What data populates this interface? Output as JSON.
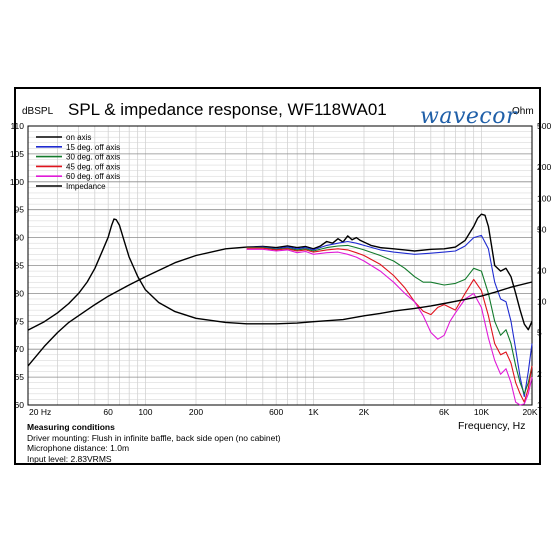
{
  "chart_data": {
    "type": "line",
    "title": "SPL & impedance response, WF118WA01",
    "logo": "wavecor",
    "y_left_label": "dBSPL",
    "y_right_label": "Ohm",
    "xlabel": "Frequency, Hz",
    "x_scale": "log",
    "xlim": [
      20,
      20000
    ],
    "ylim": [
      60,
      110
    ],
    "y_right_scale": "log",
    "y_right_lim": [
      1,
      500
    ],
    "x_ticks": [
      {
        "v": 20,
        "t": "20 Hz"
      },
      {
        "v": 60,
        "t": "60"
      },
      {
        "v": 100,
        "t": "100"
      },
      {
        "v": 200,
        "t": "200"
      },
      {
        "v": 600,
        "t": "600"
      },
      {
        "v": 1000,
        "t": "1K"
      },
      {
        "v": 2000,
        "t": "2K"
      },
      {
        "v": 6000,
        "t": "6K"
      },
      {
        "v": 10000,
        "t": "10K"
      },
      {
        "v": 20000,
        "t": "20K"
      }
    ],
    "y_ticks": [
      60,
      65,
      70,
      75,
      80,
      85,
      90,
      95,
      100,
      105,
      110
    ],
    "y_right_ticks": [
      1,
      2,
      5,
      10,
      20,
      50,
      100,
      200,
      500
    ],
    "grid": true,
    "legend_position": "top-left",
    "series": [
      {
        "name": "on axis",
        "color": "#000000",
        "axis": "left",
        "points": [
          [
            400,
            88.3
          ],
          [
            500,
            88.4
          ],
          [
            600,
            88.2
          ],
          [
            700,
            88.5
          ],
          [
            800,
            88.2
          ],
          [
            900,
            88.4
          ],
          [
            1000,
            88.0
          ],
          [
            1100,
            88.5
          ],
          [
            1200,
            89.3
          ],
          [
            1300,
            89.0
          ],
          [
            1400,
            89.8
          ],
          [
            1500,
            89.2
          ],
          [
            1600,
            90.3
          ],
          [
            1700,
            89.6
          ],
          [
            1800,
            90.0
          ],
          [
            1900,
            89.5
          ],
          [
            2000,
            89.2
          ],
          [
            2200,
            88.6
          ],
          [
            2500,
            88.2
          ],
          [
            3000,
            88.0
          ],
          [
            3500,
            87.8
          ],
          [
            4000,
            87.6
          ],
          [
            5000,
            87.9
          ],
          [
            6000,
            88.0
          ],
          [
            7000,
            88.3
          ],
          [
            8000,
            89.5
          ],
          [
            9000,
            92.0
          ],
          [
            9500,
            93.5
          ],
          [
            10000,
            94.2
          ],
          [
            10500,
            94.0
          ],
          [
            11000,
            92.0
          ],
          [
            11500,
            88.5
          ],
          [
            12000,
            85.0
          ],
          [
            13000,
            84.0
          ],
          [
            14000,
            84.5
          ],
          [
            15000,
            83.0
          ],
          [
            16000,
            80.0
          ],
          [
            17000,
            77.0
          ],
          [
            18000,
            74.5
          ],
          [
            19000,
            73.5
          ],
          [
            20000,
            75.0
          ]
        ]
      },
      {
        "name": "15 deg. off axis",
        "color": "#1f2bd0",
        "axis": "left",
        "points": [
          [
            400,
            88.2
          ],
          [
            500,
            88.3
          ],
          [
            600,
            88.0
          ],
          [
            700,
            88.3
          ],
          [
            800,
            88.0
          ],
          [
            900,
            88.2
          ],
          [
            1000,
            87.8
          ],
          [
            1200,
            88.6
          ],
          [
            1400,
            89.0
          ],
          [
            1600,
            89.3
          ],
          [
            1800,
            89.0
          ],
          [
            2000,
            88.6
          ],
          [
            2500,
            87.8
          ],
          [
            3000,
            87.4
          ],
          [
            4000,
            87.0
          ],
          [
            5000,
            87.2
          ],
          [
            6000,
            87.4
          ],
          [
            7000,
            87.6
          ],
          [
            8000,
            88.5
          ],
          [
            9000,
            90.0
          ],
          [
            10000,
            90.4
          ],
          [
            11000,
            88.0
          ],
          [
            12000,
            82.0
          ],
          [
            13000,
            79.0
          ],
          [
            14000,
            78.5
          ],
          [
            15000,
            75.0
          ],
          [
            16000,
            70.0
          ],
          [
            17000,
            65.0
          ],
          [
            18000,
            61.5
          ],
          [
            19000,
            66.0
          ],
          [
            20000,
            71.0
          ]
        ]
      },
      {
        "name": "30 deg. off axis",
        "color": "#137a2c",
        "axis": "left",
        "points": [
          [
            400,
            88.2
          ],
          [
            500,
            88.2
          ],
          [
            600,
            87.9
          ],
          [
            700,
            88.1
          ],
          [
            800,
            87.8
          ],
          [
            900,
            88.0
          ],
          [
            1000,
            87.6
          ],
          [
            1200,
            88.2
          ],
          [
            1400,
            88.5
          ],
          [
            1600,
            88.6
          ],
          [
            1800,
            88.2
          ],
          [
            2000,
            87.8
          ],
          [
            2500,
            86.8
          ],
          [
            3000,
            85.8
          ],
          [
            3500,
            84.5
          ],
          [
            4000,
            83.0
          ],
          [
            4500,
            82.0
          ],
          [
            5000,
            82.0
          ],
          [
            6000,
            81.5
          ],
          [
            7000,
            81.8
          ],
          [
            8000,
            82.5
          ],
          [
            9000,
            84.5
          ],
          [
            10000,
            84.0
          ],
          [
            11000,
            80.0
          ],
          [
            12000,
            75.0
          ],
          [
            13000,
            72.5
          ],
          [
            14000,
            73.5
          ],
          [
            15000,
            71.0
          ],
          [
            16000,
            67.0
          ],
          [
            17000,
            64.0
          ],
          [
            18000,
            62.0
          ],
          [
            19000,
            64.0
          ],
          [
            20000,
            67.0
          ]
        ]
      },
      {
        "name": "45 deg. off axis",
        "color": "#e0131d",
        "axis": "left",
        "points": [
          [
            400,
            88.1
          ],
          [
            500,
            88.1
          ],
          [
            600,
            87.8
          ],
          [
            700,
            88.0
          ],
          [
            800,
            87.6
          ],
          [
            900,
            87.8
          ],
          [
            1000,
            87.4
          ],
          [
            1200,
            87.8
          ],
          [
            1400,
            88.0
          ],
          [
            1600,
            87.8
          ],
          [
            1800,
            87.3
          ],
          [
            2000,
            86.8
          ],
          [
            2500,
            85.2
          ],
          [
            3000,
            83.2
          ],
          [
            3500,
            81.0
          ],
          [
            4000,
            78.5
          ],
          [
            4500,
            76.8
          ],
          [
            5000,
            76.2
          ],
          [
            5500,
            77.5
          ],
          [
            6000,
            78.0
          ],
          [
            7000,
            77.0
          ],
          [
            8000,
            80.0
          ],
          [
            9000,
            82.5
          ],
          [
            10000,
            80.5
          ],
          [
            11000,
            76.0
          ],
          [
            12000,
            71.0
          ],
          [
            13000,
            69.0
          ],
          [
            14000,
            69.5
          ],
          [
            15000,
            67.5
          ],
          [
            16000,
            64.0
          ],
          [
            17000,
            62.0
          ],
          [
            18000,
            60.5
          ],
          [
            19000,
            63.0
          ],
          [
            20000,
            67.0
          ]
        ]
      },
      {
        "name": "60 deg. off axis",
        "color": "#e01ad8",
        "axis": "left",
        "points": [
          [
            400,
            87.9
          ],
          [
            500,
            87.9
          ],
          [
            600,
            87.6
          ],
          [
            700,
            87.8
          ],
          [
            800,
            87.3
          ],
          [
            900,
            87.5
          ],
          [
            1000,
            87.0
          ],
          [
            1200,
            87.3
          ],
          [
            1400,
            87.4
          ],
          [
            1600,
            87.0
          ],
          [
            1800,
            86.5
          ],
          [
            2000,
            85.8
          ],
          [
            2500,
            84.0
          ],
          [
            3000,
            82.0
          ],
          [
            3500,
            80.0
          ],
          [
            4000,
            78.5
          ],
          [
            4500,
            76.0
          ],
          [
            5000,
            73.0
          ],
          [
            5500,
            71.8
          ],
          [
            6000,
            72.5
          ],
          [
            6500,
            75.0
          ],
          [
            7000,
            76.5
          ],
          [
            8000,
            79.0
          ],
          [
            9000,
            80.0
          ],
          [
            10000,
            77.5
          ],
          [
            11000,
            72.0
          ],
          [
            12000,
            68.0
          ],
          [
            13000,
            65.5
          ],
          [
            14000,
            66.5
          ],
          [
            15000,
            64.0
          ],
          [
            16000,
            60.5
          ],
          [
            17000,
            60.0
          ],
          [
            18000,
            60.2
          ],
          [
            19000,
            62.0
          ],
          [
            20000,
            65.0
          ]
        ]
      },
      {
        "name": "Impedance",
        "color": "#000000",
        "axis": "right",
        "points": [
          [
            20,
            5.3
          ],
          [
            25,
            6.4
          ],
          [
            30,
            7.8
          ],
          [
            35,
            9.6
          ],
          [
            40,
            12.0
          ],
          [
            45,
            15.5
          ],
          [
            50,
            21.0
          ],
          [
            55,
            30.0
          ],
          [
            60,
            42.0
          ],
          [
            63,
            55.0
          ],
          [
            65,
            63.0
          ],
          [
            67,
            62.0
          ],
          [
            70,
            55.0
          ],
          [
            75,
            38.0
          ],
          [
            80,
            27.0
          ],
          [
            90,
            17.5
          ],
          [
            100,
            13.0
          ],
          [
            120,
            9.8
          ],
          [
            150,
            8.0
          ],
          [
            200,
            6.9
          ],
          [
            300,
            6.3
          ],
          [
            400,
            6.1
          ],
          [
            500,
            6.1
          ],
          [
            600,
            6.1
          ],
          [
            800,
            6.2
          ],
          [
            1000,
            6.4
          ],
          [
            1500,
            6.7
          ],
          [
            2000,
            7.3
          ],
          [
            2500,
            7.7
          ],
          [
            3000,
            8.1
          ],
          [
            4000,
            8.6
          ],
          [
            5000,
            9.1
          ],
          [
            6000,
            9.6
          ],
          [
            8000,
            10.5
          ],
          [
            10000,
            11.3
          ],
          [
            12000,
            12.3
          ],
          [
            15000,
            13.8
          ],
          [
            20000,
            15.5
          ]
        ]
      },
      {
        "name": "",
        "color": "#000000",
        "axis": "left",
        "points": [
          [
            20,
            67.0
          ],
          [
            25,
            70.5
          ],
          [
            30,
            73.0
          ],
          [
            35,
            74.8
          ],
          [
            40,
            76.0
          ],
          [
            50,
            78.0
          ],
          [
            60,
            79.5
          ],
          [
            80,
            81.5
          ],
          [
            100,
            83.0
          ],
          [
            150,
            85.5
          ],
          [
            200,
            86.8
          ],
          [
            300,
            88.0
          ],
          [
            400,
            88.3
          ]
        ]
      }
    ]
  }
}
